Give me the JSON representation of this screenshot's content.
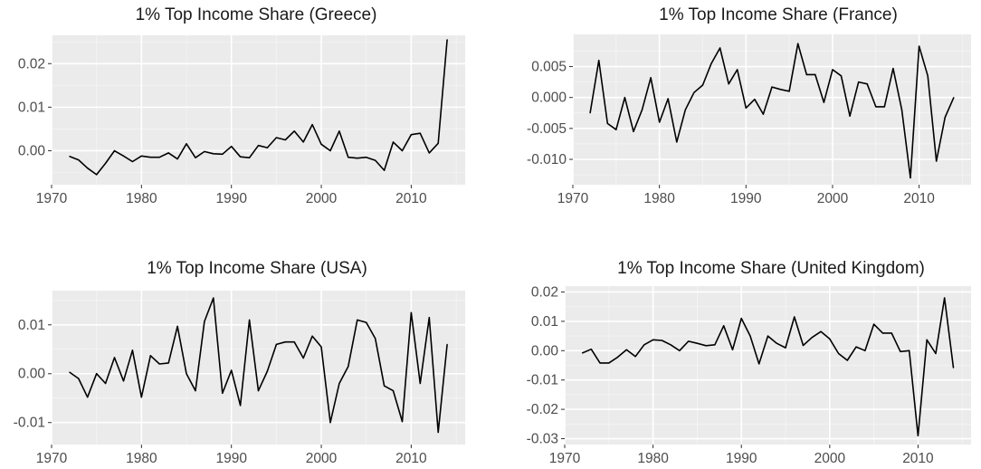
{
  "chart_data": [
    {
      "type": "line",
      "title": "1% Top Income Share (Greece)",
      "xlim": [
        1970,
        2016
      ],
      "ylim": [
        -0.0078,
        0.0265
      ],
      "xticks": [
        1970,
        1980,
        1990,
        2000,
        2010
      ],
      "xtick_labels": [
        "1970",
        "1980",
        "1990",
        "2000",
        "2010"
      ],
      "yticks": [
        0,
        0.01,
        0.02
      ],
      "ytick_labels": [
        "0.00",
        "0.01",
        "0.02"
      ],
      "grid": true,
      "series": [
        {
          "x": [
            1972,
            1973,
            1974,
            1975,
            1976,
            1977,
            1978,
            1979,
            1980,
            1981,
            1982,
            1983,
            1984,
            1985,
            1986,
            1987,
            1988,
            1989,
            1990,
            1991,
            1992,
            1993,
            1994,
            1995,
            1996,
            1997,
            1998,
            1999,
            2000,
            2001,
            2002,
            2003,
            2004,
            2005,
            2006,
            2007,
            2008,
            2009,
            2010,
            2011,
            2012,
            2013,
            2014
          ],
          "y": [
            -0.0013,
            -0.0021,
            -0.004,
            -0.0055,
            -0.0029,
            0.0,
            -0.0012,
            -0.0025,
            -0.0012,
            -0.0015,
            -0.0015,
            -0.0005,
            -0.0019,
            0.0016,
            -0.0016,
            -0.0002,
            -0.0007,
            -0.0008,
            0.001,
            -0.0014,
            -0.0016,
            0.0012,
            0.0007,
            0.003,
            0.0025,
            0.0045,
            0.002,
            0.006,
            0.0015,
            0.0,
            0.0045,
            -0.0015,
            -0.0017,
            -0.0015,
            -0.0022,
            -0.0045,
            0.002,
            0.0,
            0.0037,
            0.004,
            -0.0005,
            0.0017,
            0.0255
          ]
        }
      ]
    },
    {
      "type": "line",
      "title": "1% Top Income Share (France)",
      "xlim": [
        1970,
        2016
      ],
      "ylim": [
        -0.0141,
        0.0102
      ],
      "xticks": [
        1970,
        1980,
        1990,
        2000,
        2010
      ],
      "xtick_labels": [
        "1970",
        "1980",
        "1990",
        "2000",
        "2010"
      ],
      "yticks": [
        -0.01,
        -0.005,
        0,
        0.005
      ],
      "ytick_labels": [
        "-0.010",
        "-0.005",
        "0.000",
        "0.005"
      ],
      "grid": true,
      "series": [
        {
          "x": [
            1972,
            1973,
            1974,
            1975,
            1976,
            1977,
            1978,
            1979,
            1980,
            1981,
            1982,
            1983,
            1984,
            1985,
            1986,
            1987,
            1988,
            1989,
            1990,
            1991,
            1992,
            1993,
            1994,
            1995,
            1996,
            1997,
            1998,
            1999,
            2000,
            2001,
            2002,
            2003,
            2004,
            2005,
            2006,
            2007,
            2008,
            2009,
            2010,
            2011,
            2012,
            2013,
            2014
          ],
          "y": [
            -0.0025,
            0.006,
            -0.0042,
            -0.0052,
            0.0,
            -0.0055,
            -0.002,
            0.0032,
            -0.004,
            -0.0002,
            -0.0072,
            -0.002,
            0.0008,
            0.002,
            0.0055,
            0.008,
            0.0022,
            0.0045,
            -0.0017,
            -0.0003,
            -0.0027,
            0.0017,
            0.0013,
            0.001,
            0.0087,
            0.0037,
            0.0037,
            -0.0008,
            0.0045,
            0.0035,
            -0.003,
            0.0025,
            0.0022,
            -0.0015,
            -0.0015,
            0.0047,
            -0.002,
            -0.013,
            0.0083,
            0.0035,
            -0.0103,
            -0.0032,
            0.0
          ]
        }
      ]
    },
    {
      "type": "line",
      "title": "1% Top Income Share (USA)",
      "xlim": [
        1970,
        2016
      ],
      "ylim": [
        -0.0145,
        0.017
      ],
      "xticks": [
        1970,
        1980,
        1990,
        2000,
        2010
      ],
      "xtick_labels": [
        "1970",
        "1980",
        "1990",
        "2000",
        "2010"
      ],
      "yticks": [
        -0.01,
        0,
        0.01
      ],
      "ytick_labels": [
        "-0.01",
        "0.00",
        "0.01"
      ],
      "grid": true,
      "series": [
        {
          "x": [
            1972,
            1973,
            1974,
            1975,
            1976,
            1977,
            1978,
            1979,
            1980,
            1981,
            1982,
            1983,
            1984,
            1985,
            1986,
            1987,
            1988,
            1989,
            1990,
            1991,
            1992,
            1993,
            1994,
            1995,
            1996,
            1997,
            1998,
            1999,
            2000,
            2001,
            2002,
            2003,
            2004,
            2005,
            2006,
            2007,
            2008,
            2009,
            2010,
            2011,
            2012,
            2013,
            2014
          ],
          "y": [
            0.0003,
            -0.001,
            -0.0048,
            0.0,
            -0.002,
            0.0033,
            -0.0015,
            0.0048,
            -0.0048,
            0.0037,
            0.002,
            0.0022,
            0.0097,
            0.0,
            -0.0035,
            0.0107,
            0.0155,
            -0.004,
            0.0007,
            -0.0065,
            0.011,
            -0.0035,
            0.0005,
            0.006,
            0.0065,
            0.0065,
            0.0032,
            0.0077,
            0.0055,
            -0.01,
            -0.002,
            0.0015,
            0.011,
            0.0105,
            0.0072,
            -0.0025,
            -0.0035,
            -0.0098,
            0.0125,
            -0.002,
            0.0115,
            -0.012,
            0.006
          ]
        }
      ]
    },
    {
      "type": "line",
      "title": "1% Top Income Share (United Kingdom)",
      "xlim": [
        1970,
        2016
      ],
      "ylim": [
        -0.032,
        0.022
      ],
      "xticks": [
        1970,
        1980,
        1990,
        2000,
        2010
      ],
      "xtick_labels": [
        "1970",
        "1980",
        "1990",
        "2000",
        "2010"
      ],
      "yticks": [
        -0.03,
        -0.02,
        -0.01,
        0,
        0.01,
        0.02
      ],
      "ytick_labels": [
        "-0.03",
        "-0.02",
        "-0.01",
        "0.00",
        "0.01",
        "0.02"
      ],
      "grid": true,
      "series": [
        {
          "x": [
            1972,
            1973,
            1974,
            1975,
            1976,
            1977,
            1978,
            1979,
            1980,
            1981,
            1982,
            1983,
            1984,
            1985,
            1986,
            1987,
            1988,
            1989,
            1990,
            1991,
            1992,
            1993,
            1994,
            1995,
            1996,
            1997,
            1998,
            1999,
            2000,
            2001,
            2002,
            2003,
            2004,
            2005,
            2006,
            2007,
            2008,
            2009,
            2010,
            2011,
            2012,
            2013,
            2014
          ],
          "y": [
            -0.0008,
            0.0005,
            -0.0042,
            -0.0042,
            -0.0022,
            0.0003,
            -0.002,
            0.002,
            0.0037,
            0.0035,
            0.002,
            0.0,
            0.0032,
            0.0025,
            0.0017,
            0.002,
            0.0085,
            0.0003,
            0.011,
            0.005,
            -0.0045,
            0.005,
            0.0025,
            0.001,
            0.0115,
            0.0018,
            0.0045,
            0.0065,
            0.004,
            -0.001,
            -0.0033,
            0.0013,
            0.0,
            0.009,
            0.006,
            0.006,
            -0.0003,
            0.0,
            -0.029,
            0.0037,
            -0.001,
            0.018,
            -0.0058
          ]
        }
      ]
    }
  ]
}
